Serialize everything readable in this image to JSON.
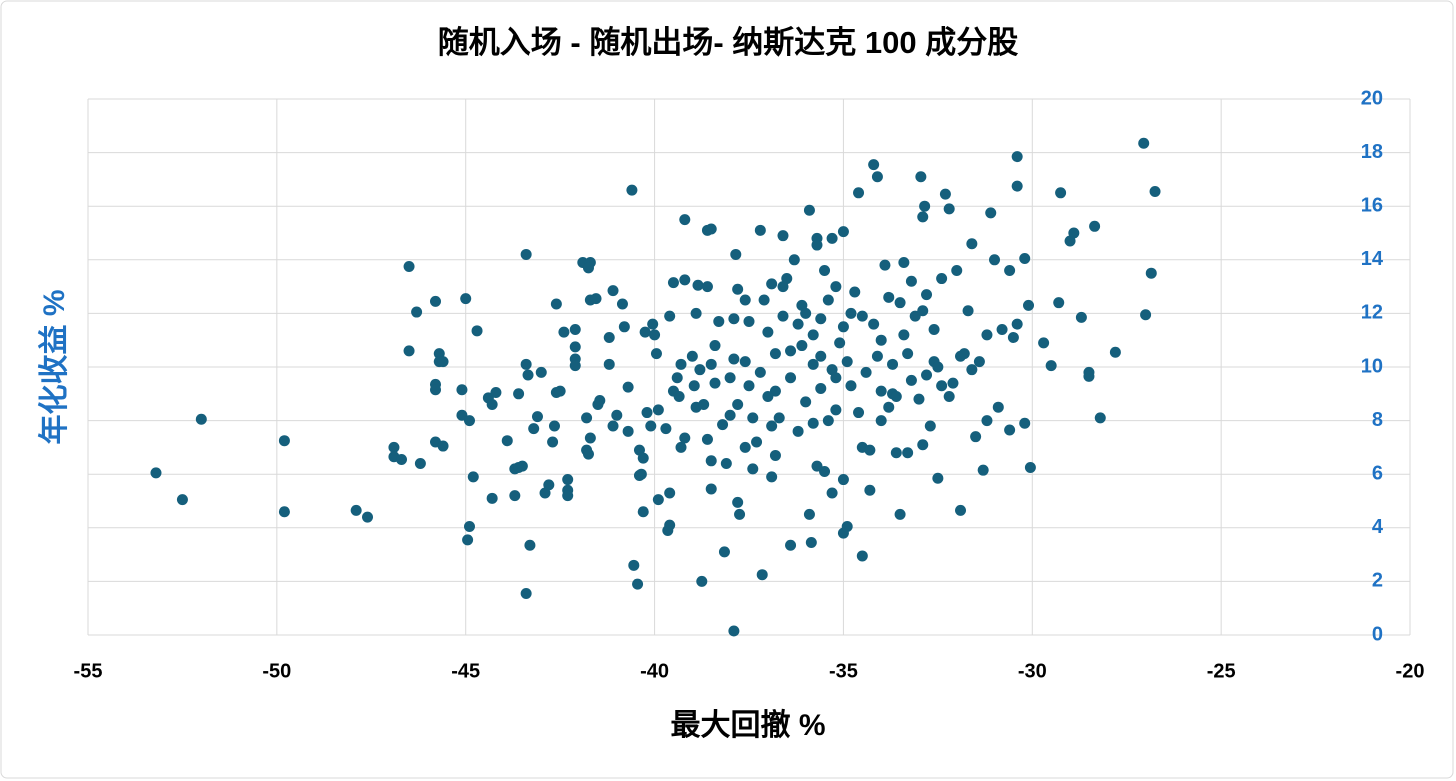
{
  "chart_data": {
    "type": "scatter",
    "title": "随机入场 - 随机出场- 纳斯达克 100 成分股",
    "x_label": "最大回撤 %",
    "y_label": "年化收益 %",
    "xlim": [
      -55,
      -20
    ],
    "xticks": [
      -55,
      -50,
      -45,
      -40,
      -35,
      -30,
      -25,
      -20
    ],
    "ylim": [
      0,
      20
    ],
    "yticks": [
      0,
      2,
      4,
      6,
      8,
      10,
      12,
      14,
      16,
      18,
      20
    ],
    "grid": true,
    "series": [
      {
        "color": "#155f7c",
        "x": [
          -53.2,
          -52.5,
          -52,
          -49.8,
          -49.8,
          -47.9,
          -47.6,
          -46.9,
          -46.9,
          -46.7,
          -46.5,
          -46.5,
          -46.3,
          -46.2,
          -45.8,
          -45.8,
          -45.8,
          -45.7,
          -45.7,
          -45.6,
          -45.8,
          -45.6,
          -45.1,
          -45.1,
          -45,
          -44.9,
          -44.9,
          -44.95,
          -44.8,
          -44.7,
          -44.4,
          -44.3,
          -44.3,
          -44.2,
          -43.9,
          -43.7,
          -43.6,
          -43.5,
          -43.7,
          -43.6,
          -43.4,
          -43.35,
          -43.4,
          -43.3,
          -43.4,
          -43.2,
          -43.1,
          -43,
          -42.9,
          -42.8,
          -42.7,
          -42.65,
          -42.6,
          -42.5,
          -42.6,
          -42.4,
          -42.3,
          -42.3,
          -42.3,
          -42.1,
          -42.1,
          -42.1,
          -42.1,
          -41.9,
          -41.7,
          -41.75,
          -41.7,
          -41.55,
          -41.8,
          -41.7,
          -41.8,
          -41.75,
          -41.5,
          -41.45,
          -41.2,
          -41.2,
          -41.1,
          -41.1,
          -41,
          -40.85,
          -40.8,
          -40.7,
          -40.7,
          -40.6,
          -40.55,
          -40.45,
          -40.4,
          -40.3,
          -40.35,
          -40.4,
          -40.3,
          -40.25,
          -40.2,
          -40.1,
          -40.05,
          -40,
          -39.95,
          -39.9,
          -39.9,
          -39.7,
          -39.6,
          -39.6,
          -39.65,
          -39.6,
          -39.5,
          -39.4,
          -39.5,
          -39.35,
          -39.3,
          -39.2,
          -39.2,
          -39.2,
          -39,
          -38.95,
          -38.9,
          -38.9,
          -38.85,
          -38.75,
          -38.7,
          -38.6,
          -38.6,
          -38.5,
          -38.5,
          -38.5,
          -38.5,
          -38.4,
          -38.3,
          -38.2,
          -38.1,
          -38.15,
          -38,
          -37.9,
          -37.85,
          -37.9,
          -37.8,
          -37.8,
          -37.75,
          -37.6,
          -37.5,
          -37.5,
          -37.4,
          -37.3,
          -37.2,
          -37.15,
          -37.1,
          -37,
          -36.9,
          -36.9,
          -36.8,
          -36.7,
          -36.6,
          -36.5,
          -36.4,
          -36.3,
          -36.2,
          -36.1,
          -36,
          -35.9,
          -35.9,
          -35.85,
          -35.8,
          -35.7,
          -35.7,
          -35.6,
          -35.5,
          -35.5,
          -35.4,
          -35.3,
          -35.3,
          -35.2,
          -35.1,
          -35,
          -35.0,
          -34.9,
          -34.8,
          -34.6,
          -34.5,
          -34.5,
          -34.3,
          -34.2,
          -34.1,
          -34.0,
          -33.9,
          -33.7,
          -33.5,
          -33.4,
          -33.3,
          -33.1,
          -32.95,
          -32.9,
          -32.85,
          -32.8,
          -32.6,
          -32.5,
          -32.3,
          -32.2,
          -32,
          -31.9,
          -31.9,
          -31.6,
          -31.4,
          -31.3,
          -31.1,
          -31,
          -30.6,
          -30.5,
          -30.4,
          -30.4,
          -30.2,
          -30.1,
          -30.05,
          -30.2,
          -30.6,
          -29.7,
          -29.5,
          -29.25,
          -29.3,
          -29.0,
          -28.9,
          -28.7,
          -28.5,
          -28.5,
          -28.35,
          -28.2,
          -27.8,
          -27.05,
          -27,
          -26.85,
          -26.75,
          -38,
          -37.6,
          -37.2,
          -36.8,
          -36.4,
          -36,
          -35.6,
          -35.2,
          -34.8,
          -34.4,
          -34,
          -33.6,
          -33.2,
          -32.8,
          -32.4,
          -37.8,
          -37,
          -36.2,
          -35.8,
          -35.4,
          -34.6,
          -33.8,
          -33,
          -32.2,
          -36.6,
          -35.8,
          -35,
          -34.2,
          -33.4,
          -32.6,
          -36.4,
          -35.6,
          -34.9,
          -34.1,
          -33.3,
          -32.5,
          -31.8,
          -31.6,
          -31.2,
          -30.8,
          -30.4,
          -37.4,
          -36.8,
          -35.7,
          -35,
          -34.3,
          -33.6,
          -32.9,
          -36.6,
          -35.2,
          -34.7,
          -33.8,
          -33.2,
          -32.4,
          -31.7,
          -36.1,
          -38.8,
          -39.3,
          -38.4,
          -37.9,
          -38.6,
          -37.6,
          -36.9,
          -35.3,
          -34,
          -32.7,
          -31.5,
          -31.2,
          -30.9,
          -33.7,
          -32.1,
          -32.9,
          -33.5,
          -34.5
        ],
        "values": [
          6.05,
          5.05,
          8.05,
          7.25,
          4.6,
          4.65,
          4.4,
          7.0,
          6.65,
          6.55,
          10.6,
          13.75,
          12.05,
          6.4,
          12.45,
          9.35,
          9.15,
          10.5,
          10.2,
          10.2,
          7.2,
          7.05,
          9.15,
          8.2,
          12.55,
          8.0,
          4.05,
          3.55,
          5.9,
          11.35,
          8.85,
          8.6,
          5.1,
          9.05,
          7.25,
          6.2,
          6.25,
          6.3,
          5.2,
          9.0,
          10.1,
          9.7,
          14.2,
          3.35,
          1.55,
          7.7,
          8.15,
          9.8,
          5.3,
          5.6,
          7.2,
          7.8,
          9.05,
          9.1,
          12.35,
          11.3,
          5.8,
          5.4,
          5.2,
          11.4,
          10.75,
          10.3,
          10.05,
          13.9,
          13.9,
          13.7,
          12.5,
          12.55,
          8.1,
          7.35,
          6.9,
          6.75,
          8.6,
          8.75,
          11.1,
          10.1,
          12.85,
          7.8,
          8.2,
          12.35,
          11.5,
          9.25,
          7.6,
          16.6,
          2.6,
          1.9,
          6.9,
          6.6,
          6.0,
          5.95,
          4.6,
          11.3,
          8.3,
          7.8,
          11.6,
          11.2,
          10.5,
          8.4,
          5.05,
          7.7,
          11.9,
          4.1,
          3.9,
          5.3,
          13.15,
          9.6,
          9.1,
          8.9,
          7.0,
          15.5,
          13.25,
          7.35,
          10.4,
          9.3,
          8.5,
          12.0,
          13.05,
          2.0,
          8.6,
          15.1,
          13.0,
          15.15,
          10.1,
          5.45,
          6.5,
          9.4,
          11.7,
          7.85,
          6.4,
          3.1,
          8.2,
          11.8,
          14.2,
          0.15,
          12.9,
          4.95,
          4.5,
          12.5,
          11.7,
          9.3,
          8.1,
          7.2,
          15.1,
          2.25,
          12.5,
          11.3,
          13.1,
          5.9,
          10.5,
          8.1,
          14.9,
          13.3,
          3.35,
          14.0,
          11.6,
          10.8,
          12.0,
          15.85,
          4.5,
          3.45,
          10.1,
          14.8,
          14.55,
          11.8,
          13.6,
          6.1,
          12.5,
          14.8,
          9.9,
          8.4,
          10.9,
          15.05,
          3.8,
          4.05,
          12.0,
          16.5,
          2.95,
          7.0,
          5.4,
          17.55,
          17.1,
          11.0,
          13.8,
          9.0,
          4.5,
          13.9,
          6.8,
          11.9,
          17.1,
          15.6,
          16.0,
          12.7,
          10.2,
          5.85,
          16.45,
          15.9,
          13.6,
          4.65,
          10.4,
          14.6,
          10.2,
          6.15,
          15.75,
          14.0,
          13.6,
          11.1,
          17.85,
          16.75,
          14.05,
          12.3,
          6.25,
          7.9,
          7.65,
          10.9,
          10.05,
          16.5,
          12.4,
          14.7,
          15.0,
          11.85,
          9.8,
          9.65,
          15.25,
          8.1,
          10.55,
          18.35,
          11.95,
          13.5,
          16.55,
          9.6,
          10.2,
          9.8,
          9.1,
          9.6,
          8.7,
          9.2,
          9.6,
          9.3,
          9.8,
          9.1,
          8.9,
          9.5,
          9.7,
          9.3,
          8.6,
          8.9,
          7.6,
          7.9,
          8.0,
          8.3,
          8.5,
          8.8,
          8.9,
          11.9,
          11.2,
          11.5,
          11.6,
          11.2,
          11.4,
          10.6,
          10.4,
          10.2,
          10.4,
          10.5,
          10.0,
          10.5,
          9.9,
          11.2,
          11.4,
          11.6,
          6.2,
          6.7,
          6.3,
          5.8,
          6.9,
          6.8,
          7.1,
          13.0,
          13.0,
          12.8,
          12.6,
          13.2,
          13.3,
          12.1,
          12.3,
          9.9,
          10.1,
          10.8,
          10.3,
          7.3,
          7.0,
          7.8,
          5.3,
          8.0,
          7.8,
          7.4,
          8.0,
          8.5,
          10.1,
          9.4,
          12.1,
          12.4,
          11.9
        ]
      }
    ]
  }
}
